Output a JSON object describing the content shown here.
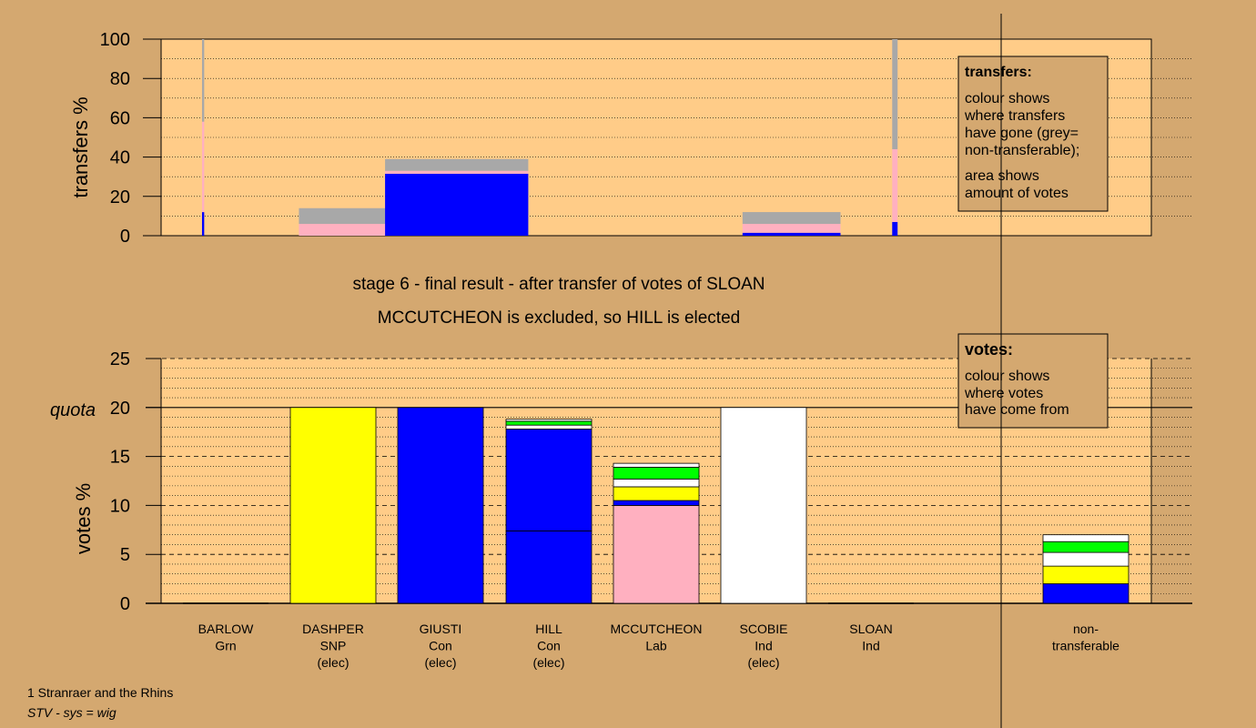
{
  "captions": {
    "stage": "stage 6 - final result - after transfer of votes of SLOAN",
    "outcome": "MCCUTCHEON is excluded, so HILL is elected"
  },
  "footer": {
    "region": "1 Stranraer and the Rhins",
    "system": "STV - sys = wig"
  },
  "colors": {
    "background": "#d4a870",
    "plot_bg": "#ffcc88",
    "Con": "#0000ff",
    "SNP": "#ffff00",
    "Grn": "#00ff00",
    "Lab": "#ffb0c0",
    "Ind": "#ffffff",
    "non_transferable": "#a8a8a8"
  },
  "chart_data": [
    {
      "type": "bar",
      "id": "transfers",
      "ylabel": "transfers %",
      "ylim": [
        0,
        100
      ],
      "yticks": [
        0,
        20,
        40,
        60,
        80,
        100
      ],
      "grid": true,
      "legend": {
        "title": "transfers:",
        "lines1": [
          "colour shows",
          "where transfers",
          "have gone (grey=",
          "non-transferable);"
        ],
        "lines2": [
          "area shows",
          "amount of votes"
        ]
      },
      "bars": [
        {
          "name": "BARLOW transfers",
          "x0": 0.28,
          "x1": 0.3,
          "segments": [
            {
              "color": "Con",
              "value": 12
            },
            {
              "color": "Lab",
              "value": 46
            },
            {
              "color": "non_transferable",
              "value": 42
            }
          ]
        },
        {
          "name": "DASHPER transfers",
          "x0": 1.18,
          "x1": 2.11,
          "segments": [
            {
              "color": "Lab",
              "value": 6
            },
            {
              "color": "non_transferable",
              "value": 8
            }
          ]
        },
        {
          "name": "GIUSTI transfers",
          "x0": 1.98,
          "x1": 3.31,
          "segments": [
            {
              "color": "Con",
              "value": 31.5
            },
            {
              "color": "Lab",
              "value": 1.5
            },
            {
              "color": "non_transferable",
              "value": 6
            }
          ]
        },
        {
          "name": "SCOBIE transfers",
          "x0": 5.3,
          "x1": 6.21,
          "segments": [
            {
              "color": "Con",
              "value": 1.5
            },
            {
              "color": "Lab",
              "value": 4.5
            },
            {
              "color": "non_transferable",
              "value": 6
            }
          ]
        },
        {
          "name": "SLOAN transfers",
          "x0": 6.69,
          "x1": 6.74,
          "segments": [
            {
              "color": "Con",
              "value": 7
            },
            {
              "color": "Lab",
              "value": 37
            },
            {
              "color": "non_transferable",
              "value": 56
            }
          ]
        }
      ]
    },
    {
      "type": "bar",
      "id": "votes",
      "ylabel": "votes %",
      "ylim": [
        0,
        25
      ],
      "yticks": [
        0,
        5,
        10,
        15,
        20,
        25
      ],
      "quota": 20,
      "quota_label": "quota",
      "grid": true,
      "legend": {
        "title": "votes:",
        "lines1": [
          "colour shows",
          "where votes",
          "have come from"
        ]
      },
      "categories": [
        {
          "name": "BARLOW",
          "party": "Grn",
          "status": ""
        },
        {
          "name": "DASHPER",
          "party": "SNP",
          "status": "(elec)"
        },
        {
          "name": "GIUSTI",
          "party": "Con",
          "status": "(elec)"
        },
        {
          "name": "HILL",
          "party": "Con",
          "status": "(elec)"
        },
        {
          "name": "MCCUTCHEON",
          "party": "Lab",
          "status": ""
        },
        {
          "name": "SCOBIE",
          "party": "Ind",
          "status": "(elec)"
        },
        {
          "name": "SLOAN",
          "party": "Ind",
          "status": ""
        },
        {
          "name": "non-",
          "party": "transferable",
          "status": ""
        }
      ],
      "series": [
        {
          "segments": []
        },
        {
          "segments": [
            {
              "color": "SNP",
              "value": 20
            }
          ]
        },
        {
          "segments": [
            {
              "color": "Con",
              "value": 20
            }
          ]
        },
        {
          "segments": [
            {
              "color": "Con",
              "value": 7.4
            },
            {
              "color": "Con",
              "value": 10.4
            },
            {
              "color": "Ind",
              "value": 0.4
            },
            {
              "color": "Grn",
              "value": 0.4
            },
            {
              "color": "Ind",
              "value": 0.2
            }
          ]
        },
        {
          "segments": [
            {
              "color": "Lab",
              "value": 10
            },
            {
              "color": "Con",
              "value": 0.5
            },
            {
              "color": "SNP",
              "value": 1.4
            },
            {
              "color": "Ind",
              "value": 0.8
            },
            {
              "color": "Grn",
              "value": 1.2
            },
            {
              "color": "Ind",
              "value": 0.4
            }
          ]
        },
        {
          "segments": [
            {
              "color": "Ind",
              "value": 20
            }
          ]
        },
        {
          "segments": []
        },
        {
          "segments": [
            {
              "color": "Con",
              "value": 2
            },
            {
              "color": "SNP",
              "value": 1.8
            },
            {
              "color": "Ind",
              "value": 1.4
            },
            {
              "color": "Grn",
              "value": 1.1
            },
            {
              "color": "Ind",
              "value": 0.7
            }
          ]
        }
      ]
    }
  ]
}
